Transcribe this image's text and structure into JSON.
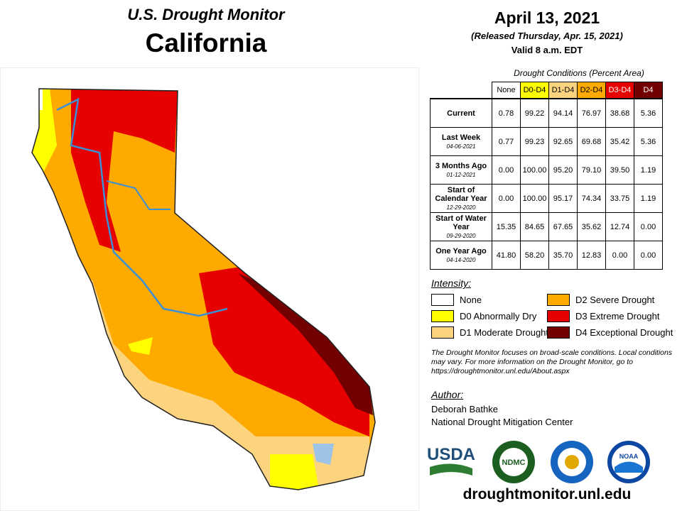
{
  "header": {
    "title": "U.S. Drought Monitor",
    "region": "California",
    "date": "April 13, 2021",
    "released": "(Released Thursday, Apr. 15, 2021)",
    "valid": "Valid 8 a.m. EDT"
  },
  "table": {
    "caption": "Drought Conditions (Percent Area)",
    "columns": [
      "None",
      "D0-D4",
      "D1-D4",
      "D2-D4",
      "D3-D4",
      "D4"
    ],
    "rows": [
      {
        "label": "Current",
        "values": [
          "0.78",
          "99.22",
          "94.14",
          "76.97",
          "38.68",
          "5.36"
        ]
      },
      {
        "label": "Last Week",
        "date": "04-06-2021",
        "values": [
          "0.77",
          "99.23",
          "92.65",
          "69.68",
          "35.42",
          "5.36"
        ]
      },
      {
        "label": "3 Months Ago",
        "date": "01-12-2021",
        "values": [
          "0.00",
          "100.00",
          "95.20",
          "79.10",
          "39.50",
          "1.19"
        ]
      },
      {
        "label": "Start of Calendar Year",
        "date": "12-29-2020",
        "values": [
          "0.00",
          "100.00",
          "95.17",
          "74.34",
          "33.75",
          "1.19"
        ]
      },
      {
        "label": "Start of Water Year",
        "date": "09-29-2020",
        "values": [
          "15.35",
          "84.65",
          "67.65",
          "35.62",
          "12.74",
          "0.00"
        ]
      },
      {
        "label": "One Year Ago",
        "date": "04-14-2020",
        "values": [
          "41.80",
          "58.20",
          "35.70",
          "12.83",
          "0.00",
          "0.00"
        ]
      }
    ]
  },
  "legend": {
    "title": "Intensity:",
    "items": [
      {
        "label": "None",
        "color": "#ffffff"
      },
      {
        "label": "D0 Abnormally Dry",
        "color": "#ffff00"
      },
      {
        "label": "D1 Moderate Drought",
        "color": "#fcd37f"
      },
      {
        "label": "D2 Severe Drought",
        "color": "#ffaa00"
      },
      {
        "label": "D3 Extreme Drought",
        "color": "#e60000"
      },
      {
        "label": "D4 Exceptional Drought",
        "color": "#730000"
      }
    ]
  },
  "note": "The Drought Monitor focuses on broad-scale conditions. Local conditions may vary. For more information on the Drought Monitor, go to https://droughtmonitor.unl.edu/About.aspx",
  "author": {
    "heading": "Author:",
    "name": "Deborah Bathke",
    "org": "National Drought Mitigation Center"
  },
  "logos": [
    "USDA",
    "NDMC",
    "NOAA"
  ],
  "url": "droughtmonitor.unl.edu"
}
